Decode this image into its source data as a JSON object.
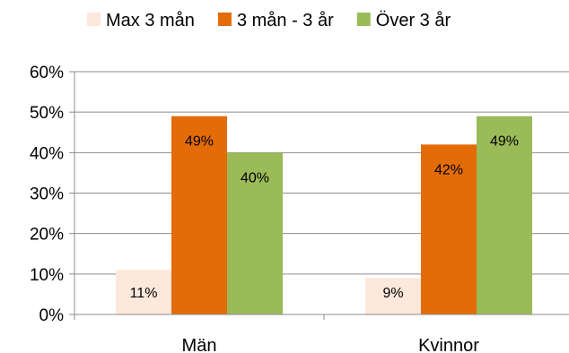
{
  "chart_data": {
    "type": "bar",
    "categories": [
      "Män",
      "Kvinnor"
    ],
    "series": [
      {
        "name": "Max 3 mån",
        "color": "#fde8dc",
        "values": [
          11,
          9
        ]
      },
      {
        "name": "3 mån - 3 år",
        "color": "#e36c09",
        "values": [
          49,
          42
        ]
      },
      {
        "name": "Över 3 år",
        "color": "#9bbb59",
        "values": [
          40,
          49
        ]
      }
    ],
    "ylim": [
      0,
      60
    ],
    "yticks": [
      "0%",
      "10%",
      "20%",
      "30%",
      "40%",
      "50%",
      "60%"
    ],
    "ytick_values": [
      0,
      10,
      20,
      30,
      40,
      50,
      60
    ],
    "value_labels": [
      [
        "11%",
        "9%"
      ],
      [
        "49%",
        "42%"
      ],
      [
        "40%",
        "49%"
      ]
    ],
    "grid": true,
    "legend_position": "top",
    "title": "",
    "xlabel": "",
    "ylabel": ""
  }
}
